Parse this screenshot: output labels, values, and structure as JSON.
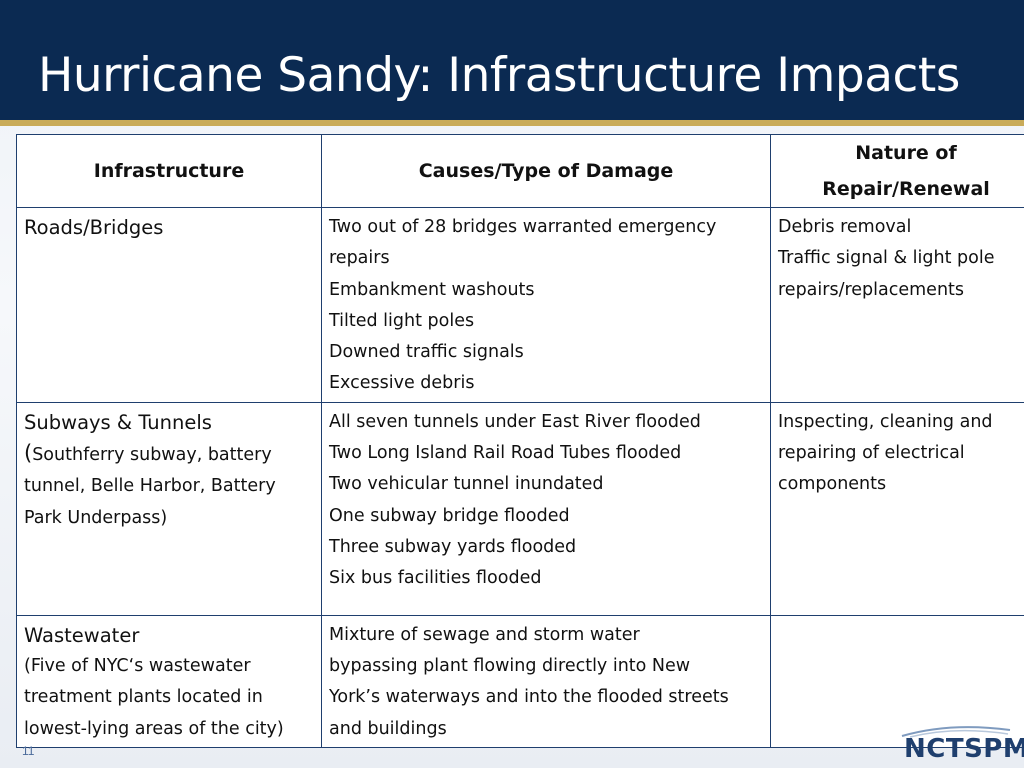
{
  "slide": {
    "title": "Hurricane Sandy: Infrastructure Impacts",
    "number": "11",
    "logo_text": "NCTSPM"
  },
  "table": {
    "headers": {
      "infrastructure": "Infrastructure",
      "causes": "Causes/Type of Damage",
      "repair_line1": "Nature of",
      "repair_line2": "Repair/Renewal"
    },
    "rows": [
      {
        "infrastructure": "Roads/Bridges",
        "causes": [
          "Two out of 28 bridges warranted emergency",
          "repairs",
          "Embankment washouts",
          "Tilted light poles",
          "Downed traffic signals",
          "Excessive debris"
        ],
        "repair": [
          "Debris removal",
          "Traffic signal & light pole",
          "repairs/replacements"
        ]
      },
      {
        "infrastructure": "Subways & Tunnels",
        "infrastructure_paren": "(",
        "infrastructure_detail": "Southferry subway, battery tunnel, Belle Harbor, Battery Park Underpass)",
        "causes": [
          "All seven tunnels under East River flooded",
          "Two Long Island Rail Road Tubes flooded",
          "Two vehicular tunnel inundated",
          "One subway bridge flooded",
          "Three subway yards flooded",
          "Six bus facilities flooded"
        ],
        "repair": [
          "Inspecting, cleaning and",
          "repairing of electrical",
          "components"
        ]
      },
      {
        "infrastructure": "Wastewater",
        "infrastructure_detail": "(Five of NYC‘s wastewater treatment plants located in lowest-lying areas of the city)",
        "causes": [
          "Mixture of sewage and storm water",
          "bypassing plant flowing directly into New",
          "York’s waterways and into the flooded streets",
          "and buildings"
        ],
        "repair": []
      }
    ]
  },
  "colors": {
    "header_bg": "#0b2a52",
    "accent_rule": "#c9ab59",
    "table_border": "#1f3f6e"
  }
}
